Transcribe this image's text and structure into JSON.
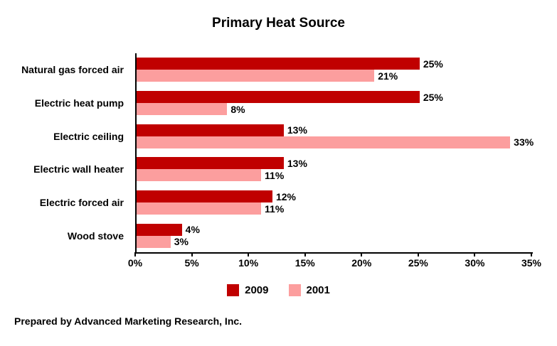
{
  "title": "Primary Heat Source",
  "footer": "Prepared by Advanced Marketing Research, Inc.",
  "colors": {
    "series_2009": "#c00000",
    "series_2001": "#fc9e9e",
    "axis": "#000000",
    "text": "#000000",
    "background": "#ffffff"
  },
  "chart_data": {
    "type": "bar",
    "orientation": "horizontal",
    "title": "Primary Heat Source",
    "categories": [
      "Natural gas forced air",
      "Electric heat pump",
      "Electric ceiling",
      "Electric wall heater",
      "Electric forced air",
      "Wood stove"
    ],
    "series": [
      {
        "name": "2009",
        "color": "#c00000",
        "values": [
          25,
          25,
          13,
          13,
          12,
          4
        ]
      },
      {
        "name": "2001",
        "color": "#fc9e9e",
        "values": [
          21,
          8,
          33,
          11,
          11,
          3
        ]
      }
    ],
    "value_suffix": "%",
    "xlim": [
      0,
      35
    ],
    "x_ticks": [
      "0%",
      "5%",
      "10%",
      "15%",
      "20%",
      "25%",
      "30%",
      "35%"
    ],
    "grid": false,
    "legend_position": "bottom"
  }
}
